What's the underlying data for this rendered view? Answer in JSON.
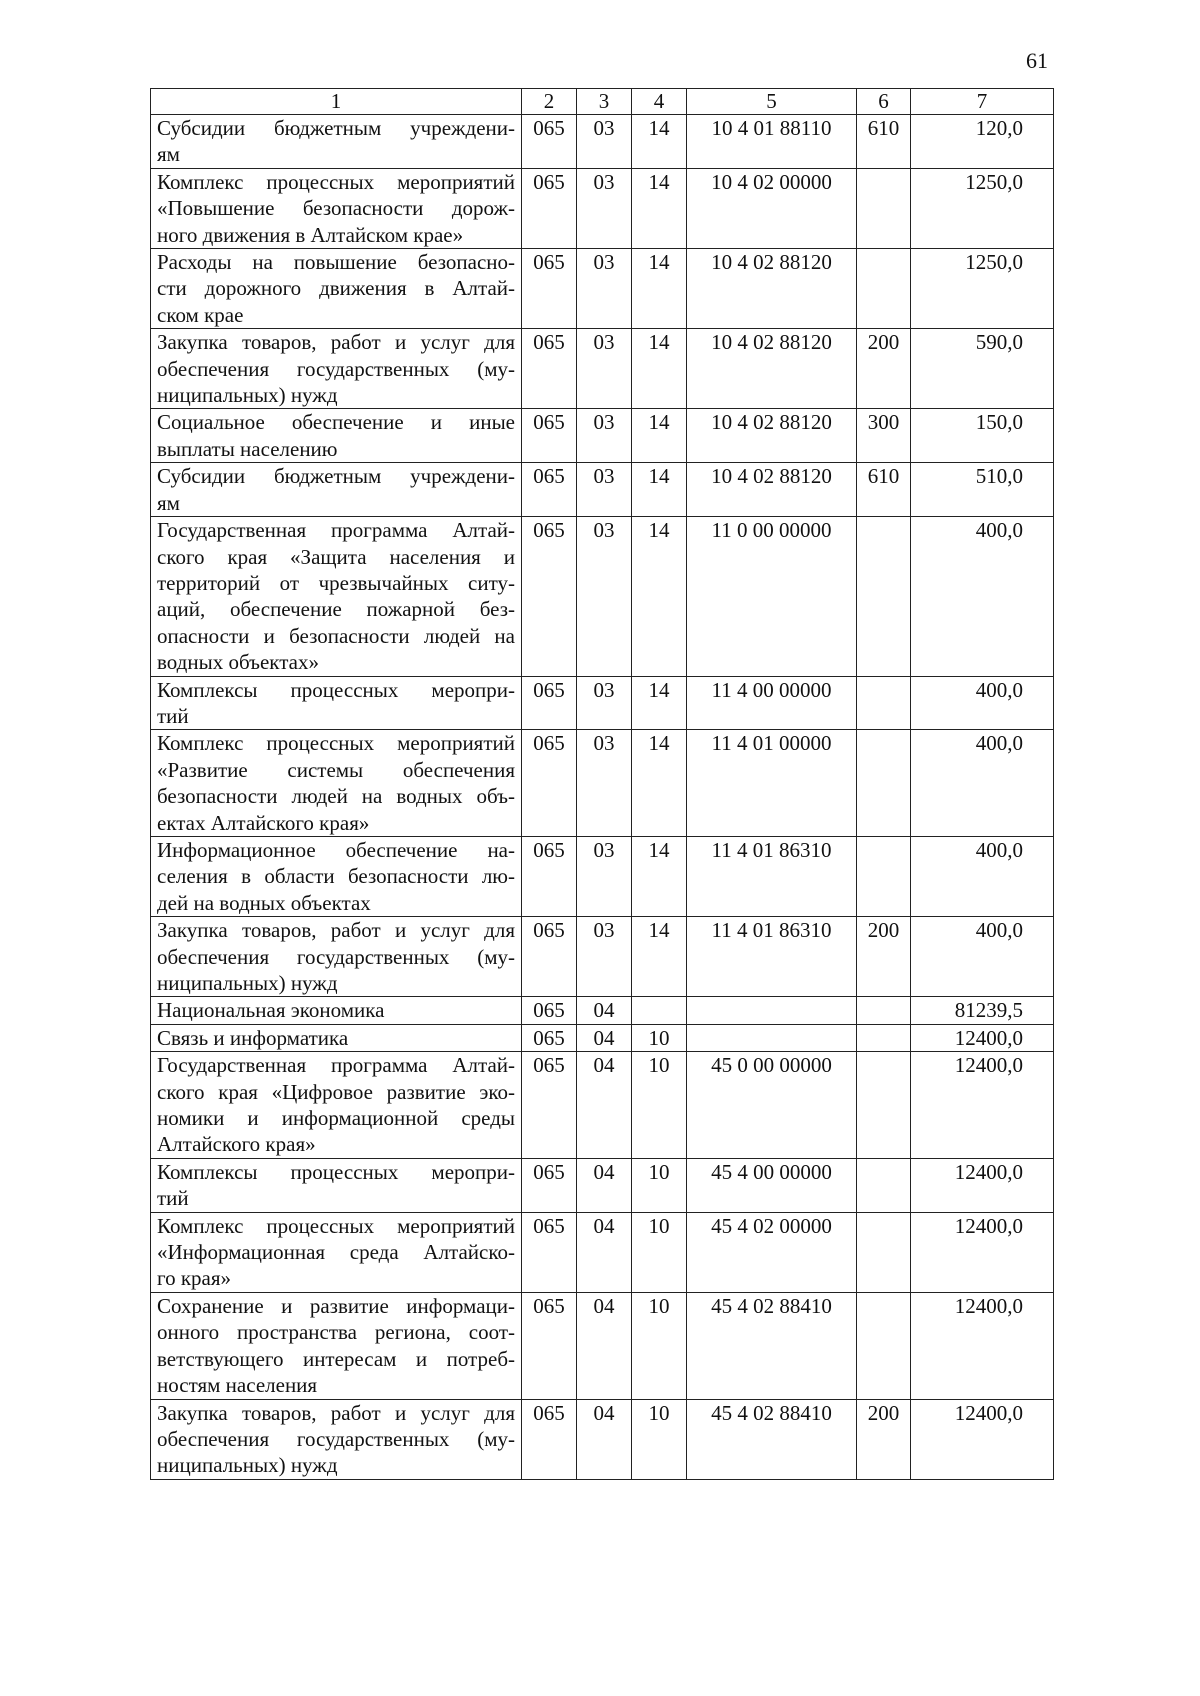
{
  "page_number": "61",
  "table": {
    "headers": [
      "1",
      "2",
      "3",
      "4",
      "5",
      "6",
      "7"
    ],
    "rows": [
      {
        "name": [
          "Субсидии бюджетным учреждени-",
          "ям"
        ],
        "c2": "065",
        "c3": "03",
        "c4": "14",
        "c5": "10 4 01 88110",
        "c6": "610",
        "c7": "120,0"
      },
      {
        "name": [
          "Комплекс процессных мероприятий",
          "«Повышение безопасности дорож-",
          "ного движения в Алтайском крае»"
        ],
        "c2": "065",
        "c3": "03",
        "c4": "14",
        "c5": "10 4 02 00000",
        "c6": "",
        "c7": "1250,0"
      },
      {
        "name": [
          "Расходы на повышение безопасно-",
          "сти дорожного движения в Алтай-",
          "ском крае"
        ],
        "c2": "065",
        "c3": "03",
        "c4": "14",
        "c5": "10 4 02 88120",
        "c6": "",
        "c7": "1250,0"
      },
      {
        "name": [
          "Закупка товаров, работ и услуг для",
          "обеспечения государственных (му-",
          "ниципальных) нужд"
        ],
        "c2": "065",
        "c3": "03",
        "c4": "14",
        "c5": "10 4 02 88120",
        "c6": "200",
        "c7": "590,0"
      },
      {
        "name": [
          "Социальное обеспечение и иные",
          "выплаты населению"
        ],
        "c2": "065",
        "c3": "03",
        "c4": "14",
        "c5": "10 4 02 88120",
        "c6": "300",
        "c7": "150,0"
      },
      {
        "name": [
          "Субсидии бюджетным учреждени-",
          "ям"
        ],
        "c2": "065",
        "c3": "03",
        "c4": "14",
        "c5": "10 4 02 88120",
        "c6": "610",
        "c7": "510,0"
      },
      {
        "name": [
          "Государственная программа Алтай-",
          "ского края «Защита населения и",
          "территорий от чрезвычайных ситу-",
          "аций, обеспечение пожарной без-",
          "опасности и безопасности людей на",
          "водных объектах»"
        ],
        "c2": "065",
        "c3": "03",
        "c4": "14",
        "c5": "11 0 00 00000",
        "c6": "",
        "c7": "400,0"
      },
      {
        "name": [
          "Комплексы процессных меропри-",
          "тий"
        ],
        "c2": "065",
        "c3": "03",
        "c4": "14",
        "c5": "11 4 00 00000",
        "c6": "",
        "c7": "400,0"
      },
      {
        "name": [
          "Комплекс процессных мероприятий",
          "«Развитие системы обеспечения",
          "безопасности людей на водных объ-",
          "ектах Алтайского края»"
        ],
        "c2": "065",
        "c3": "03",
        "c4": "14",
        "c5": "11 4 01 00000",
        "c6": "",
        "c7": "400,0"
      },
      {
        "name": [
          "Информационное обеспечение на-",
          "селения в области безопасности лю-",
          "дей на водных объектах"
        ],
        "c2": "065",
        "c3": "03",
        "c4": "14",
        "c5": "11 4 01 86310",
        "c6": "",
        "c7": "400,0"
      },
      {
        "name": [
          "Закупка товаров, работ и услуг для",
          "обеспечения государственных (му-",
          "ниципальных) нужд"
        ],
        "c2": "065",
        "c3": "03",
        "c4": "14",
        "c5": "11 4 01 86310",
        "c6": "200",
        "c7": "400,0"
      },
      {
        "name": [
          "Национальная экономика"
        ],
        "c2": "065",
        "c3": "04",
        "c4": "",
        "c5": "",
        "c6": "",
        "c7": "81239,5"
      },
      {
        "name": [
          "Связь и информатика"
        ],
        "c2": "065",
        "c3": "04",
        "c4": "10",
        "c5": "",
        "c6": "",
        "c7": "12400,0"
      },
      {
        "name": [
          "Государственная программа Алтай-",
          "ского края «Цифровое развитие эко-",
          "номики и информационной среды",
          "Алтайского края»"
        ],
        "c2": "065",
        "c3": "04",
        "c4": "10",
        "c5": "45 0 00 00000",
        "c6": "",
        "c7": "12400,0"
      },
      {
        "name": [
          "Комплексы процессных меропри-",
          "тий"
        ],
        "c2": "065",
        "c3": "04",
        "c4": "10",
        "c5": "45 4 00 00000",
        "c6": "",
        "c7": "12400,0"
      },
      {
        "name": [
          "Комплекс процессных мероприятий",
          "«Информационная среда Алтайско-",
          "го края»"
        ],
        "c2": "065",
        "c3": "04",
        "c4": "10",
        "c5": "45 4 02 00000",
        "c6": "",
        "c7": "12400,0"
      },
      {
        "name": [
          "Сохранение и развитие информаци-",
          "онного пространства региона, соот-",
          "ветствующего интересам и потреб-",
          "ностям населения"
        ],
        "c2": "065",
        "c3": "04",
        "c4": "10",
        "c5": "45 4 02 88410",
        "c6": "",
        "c7": "12400,0"
      },
      {
        "name": [
          "Закупка товаров, работ и услуг для",
          "обеспечения государственных (му-",
          "ниципальных) нужд"
        ],
        "c2": "065",
        "c3": "04",
        "c4": "10",
        "c5": "45 4 02 88410",
        "c6": "200",
        "c7": "12400,0"
      }
    ]
  }
}
